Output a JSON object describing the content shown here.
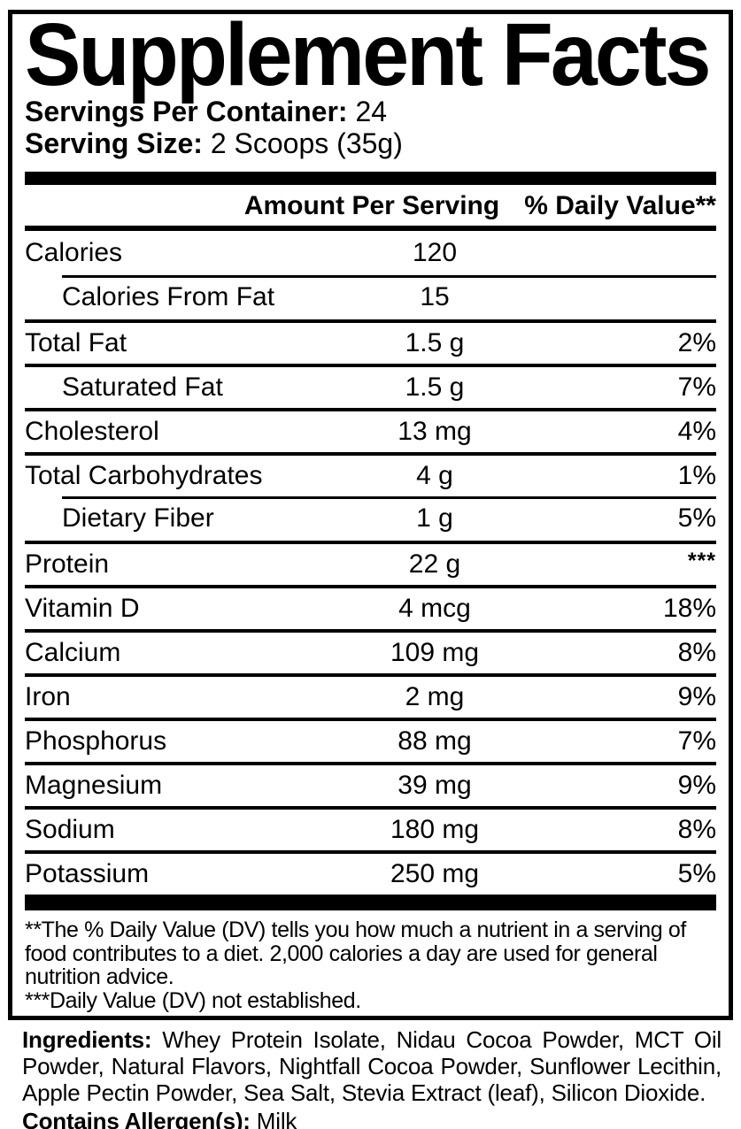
{
  "colors": {
    "ink": "#000000",
    "background": "#ffffff"
  },
  "label": {
    "title": "Supplement Facts",
    "servings_per_container": {
      "label": "Servings Per Container:",
      "value": "24"
    },
    "serving_size": {
      "label": "Serving Size:",
      "value": "2 Scoops (35g)"
    },
    "table": {
      "headers": {
        "amount": "Amount Per Serving",
        "daily_value": "% Daily Value**"
      },
      "rows": [
        {
          "name": "Calories",
          "amount": "120",
          "dv": "",
          "indent": false,
          "sep": "none"
        },
        {
          "name": "Calories From Fat",
          "amount": "15",
          "dv": "",
          "indent": true,
          "sep": "indent"
        },
        {
          "name": "Total Fat",
          "amount": "1.5 g",
          "dv": "2%",
          "indent": false,
          "sep": "full"
        },
        {
          "name": "Saturated Fat",
          "amount": "1.5 g",
          "dv": "7%",
          "indent": true,
          "sep": "full"
        },
        {
          "name": "Cholesterol",
          "amount": "13 mg",
          "dv": "4%",
          "indent": false,
          "sep": "full"
        },
        {
          "name": "Total Carbohydrates",
          "amount": "4 g",
          "dv": "1%",
          "indent": false,
          "sep": "full"
        },
        {
          "name": "Dietary Fiber",
          "amount": "1 g",
          "dv": "5%",
          "indent": true,
          "sep": "indent"
        },
        {
          "name": "Protein",
          "amount": "22 g",
          "dv": "***",
          "indent": false,
          "sep": "full"
        },
        {
          "name": "Vitamin D",
          "amount": "4 mcg",
          "dv": "18%",
          "indent": false,
          "sep": "full"
        },
        {
          "name": "Calcium",
          "amount": "109 mg",
          "dv": "8%",
          "indent": false,
          "sep": "full"
        },
        {
          "name": "Iron",
          "amount": "2 mg",
          "dv": "9%",
          "indent": false,
          "sep": "full"
        },
        {
          "name": "Phosphorus",
          "amount": "88 mg",
          "dv": "7%",
          "indent": false,
          "sep": "full"
        },
        {
          "name": "Magnesium",
          "amount": "39 mg",
          "dv": "9%",
          "indent": false,
          "sep": "full"
        },
        {
          "name": "Sodium",
          "amount": "180 mg",
          "dv": "8%",
          "indent": false,
          "sep": "full"
        },
        {
          "name": "Potassium",
          "amount": "250 mg",
          "dv": "5%",
          "indent": false,
          "sep": "full"
        }
      ]
    },
    "footnotes": [
      "**The % Daily Value (DV) tells you how much a nutrient in a serving of food contributes to a diet. 2,000 calories a day are used for general nutrition advice.",
      "***Daily Value (DV) not established."
    ]
  },
  "ingredients": {
    "label": "Ingredients:",
    "text": "Whey Protein Isolate, Nidau Cocoa Powder, MCT Oil Powder, Natural Flavors, Nightfall Cocoa Powder, Sunflower Lecithin, Apple Pectin Powder, Sea Salt, Stevia Extract (leaf), Silicon Dioxide."
  },
  "allergens": {
    "label": "Contains Allergen(s):",
    "value": "Milk"
  }
}
